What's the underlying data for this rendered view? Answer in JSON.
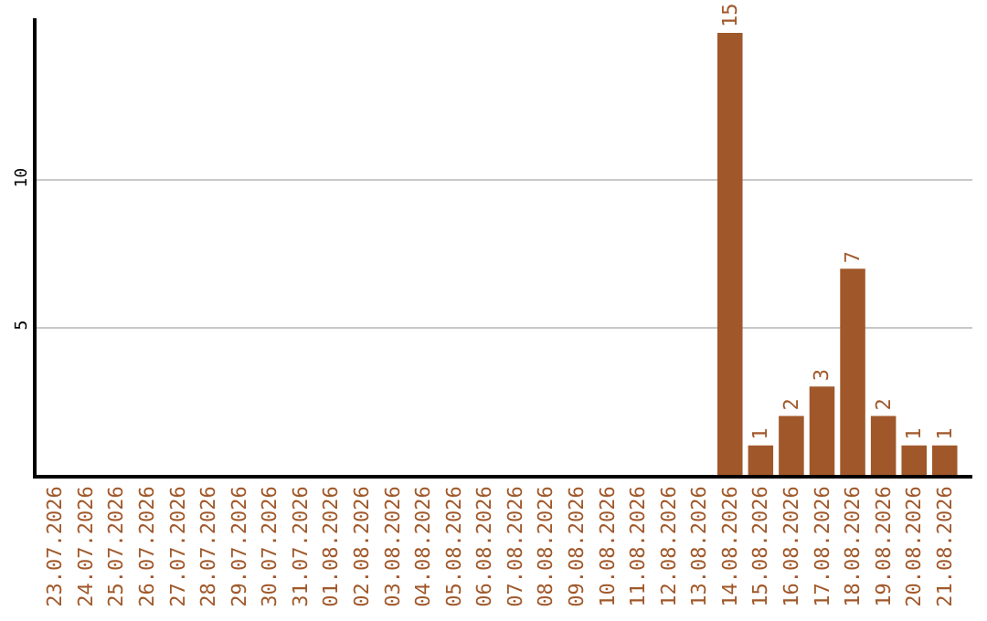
{
  "chart_data": {
    "type": "bar",
    "categories": [
      "23.07.2026",
      "24.07.2026",
      "25.07.2026",
      "26.07.2026",
      "27.07.2026",
      "28.07.2026",
      "29.07.2026",
      "30.07.2026",
      "31.07.2026",
      "01.08.2026",
      "02.08.2026",
      "03.08.2026",
      "04.08.2026",
      "05.08.2026",
      "06.08.2026",
      "07.08.2026",
      "08.08.2026",
      "09.08.2026",
      "10.08.2026",
      "11.08.2026",
      "12.08.2026",
      "13.08.2026",
      "14.08.2026",
      "15.08.2026",
      "16.08.2026",
      "17.08.2026",
      "18.08.2026",
      "19.08.2026",
      "20.08.2026",
      "21.08.2026"
    ],
    "values": [
      0,
      0,
      0,
      0,
      0,
      0,
      0,
      0,
      0,
      0,
      0,
      0,
      0,
      0,
      0,
      0,
      0,
      0,
      0,
      0,
      0,
      0,
      15,
      1,
      2,
      3,
      7,
      2,
      1,
      1
    ],
    "value_labels": [
      null,
      null,
      null,
      null,
      null,
      null,
      null,
      null,
      null,
      null,
      null,
      null,
      null,
      null,
      null,
      null,
      null,
      null,
      null,
      null,
      null,
      null,
      "15",
      "1",
      "2",
      "3",
      "7",
      "2",
      "1",
      "1"
    ],
    "color": "#a0582a",
    "ylim": [
      0,
      15.5
    ],
    "yticks": [
      5,
      10
    ],
    "grid": "y",
    "legend": false
  }
}
